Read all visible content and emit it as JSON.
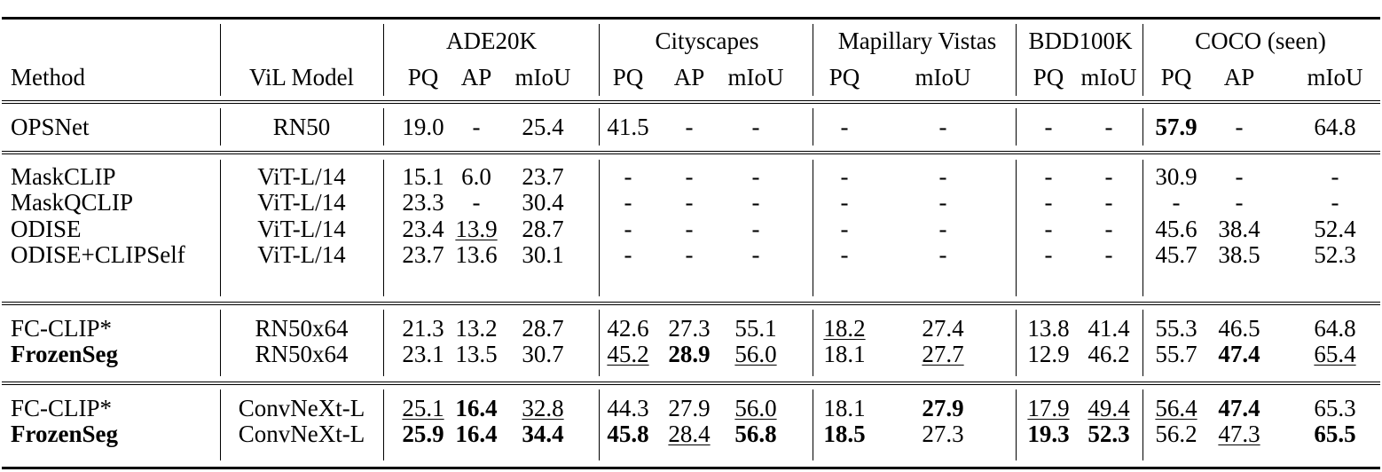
{
  "table": {
    "header": {
      "method_label": "Method",
      "vil_model_label": "ViL Model",
      "datasets": [
        {
          "name": "ADE20K",
          "metrics": [
            "PQ",
            "AP",
            "mIoU"
          ]
        },
        {
          "name": "Cityscapes",
          "metrics": [
            "PQ",
            "AP",
            "mIoU"
          ]
        },
        {
          "name": "Mapillary Vistas",
          "metrics": [
            "PQ",
            "mIoU"
          ]
        },
        {
          "name": "BDD100K",
          "metrics": [
            "PQ",
            "mIoU"
          ]
        },
        {
          "name": "COCO (seen)",
          "metrics": [
            "PQ",
            "AP",
            "mIoU"
          ]
        }
      ]
    },
    "groups": [
      {
        "rows": [
          {
            "method": "OPSNet",
            "method_bold": false,
            "vil": "RN50",
            "values": [
              "19.0",
              "-",
              "25.4",
              "41.5",
              "-",
              "-",
              "-",
              "-",
              "-",
              "-",
              "57.9",
              "-",
              "64.8"
            ],
            "bold": [
              10
            ],
            "underline": []
          }
        ]
      },
      {
        "rows": [
          {
            "method": "MaskCLIP",
            "method_bold": false,
            "vil": "ViT-L/14",
            "values": [
              "15.1",
              "6.0",
              "23.7",
              "-",
              "-",
              "-",
              "-",
              "-",
              "-",
              "-",
              "30.9",
              "-",
              "-"
            ],
            "bold": [],
            "underline": []
          },
          {
            "method": "MaskQCLIP",
            "method_bold": false,
            "vil": "ViT-L/14",
            "values": [
              "23.3",
              "-",
              "30.4",
              "-",
              "-",
              "-",
              "-",
              "-",
              "-",
              "-",
              "-",
              "-",
              "-"
            ],
            "bold": [],
            "underline": []
          },
          {
            "method": "ODISE",
            "method_bold": false,
            "vil": "ViT-L/14",
            "values": [
              "23.4",
              "13.9",
              "28.7",
              "-",
              "-",
              "-",
              "-",
              "-",
              "-",
              "-",
              "45.6",
              "38.4",
              "52.4"
            ],
            "bold": [],
            "underline": [
              1
            ]
          },
          {
            "method": "ODISE+CLIPSelf",
            "method_bold": false,
            "vil": "ViT-L/14",
            "values": [
              "23.7",
              "13.6",
              "30.1",
              "-",
              "-",
              "-",
              "-",
              "-",
              "-",
              "-",
              "45.7",
              "38.5",
              "52.3"
            ],
            "bold": [],
            "underline": []
          }
        ]
      },
      {
        "rows": [
          {
            "method": "FC-CLIP*",
            "method_bold": false,
            "vil": "RN50x64",
            "values": [
              "21.3",
              "13.2",
              "28.7",
              "42.6",
              "27.3",
              "55.1",
              "18.2",
              "27.4",
              "13.8",
              "41.4",
              "55.3",
              "46.5",
              "64.8"
            ],
            "bold": [],
            "underline": [
              6
            ]
          },
          {
            "method": "FrozenSeg",
            "method_bold": true,
            "vil": "RN50x64",
            "values": [
              "23.1",
              "13.5",
              "30.7",
              "45.2",
              "28.9",
              "56.0",
              "18.1",
              "27.7",
              "12.9",
              "46.2",
              "55.7",
              "47.4",
              "65.4"
            ],
            "bold": [
              4,
              11
            ],
            "underline": [
              3,
              5,
              7,
              12
            ]
          }
        ]
      },
      {
        "rows": [
          {
            "method": "FC-CLIP*",
            "method_bold": false,
            "vil": "ConvNeXt-L",
            "values": [
              "25.1",
              "16.4",
              "32.8",
              "44.3",
              "27.9",
              "56.0",
              "18.1",
              "27.9",
              "17.9",
              "49.4",
              "56.4",
              "47.4",
              "65.3"
            ],
            "bold": [
              1,
              7,
              11
            ],
            "underline": [
              0,
              2,
              5,
              8,
              9,
              10
            ]
          },
          {
            "method": "FrozenSeg",
            "method_bold": true,
            "vil": "ConvNeXt-L",
            "values": [
              "25.9",
              "16.4",
              "34.4",
              "45.8",
              "28.4",
              "56.8",
              "18.5",
              "27.3",
              "19.3",
              "52.3",
              "56.2",
              "47.3",
              "65.5"
            ],
            "bold": [
              0,
              1,
              2,
              3,
              5,
              6,
              8,
              9,
              12
            ],
            "underline": [
              4,
              11
            ]
          }
        ]
      }
    ]
  }
}
